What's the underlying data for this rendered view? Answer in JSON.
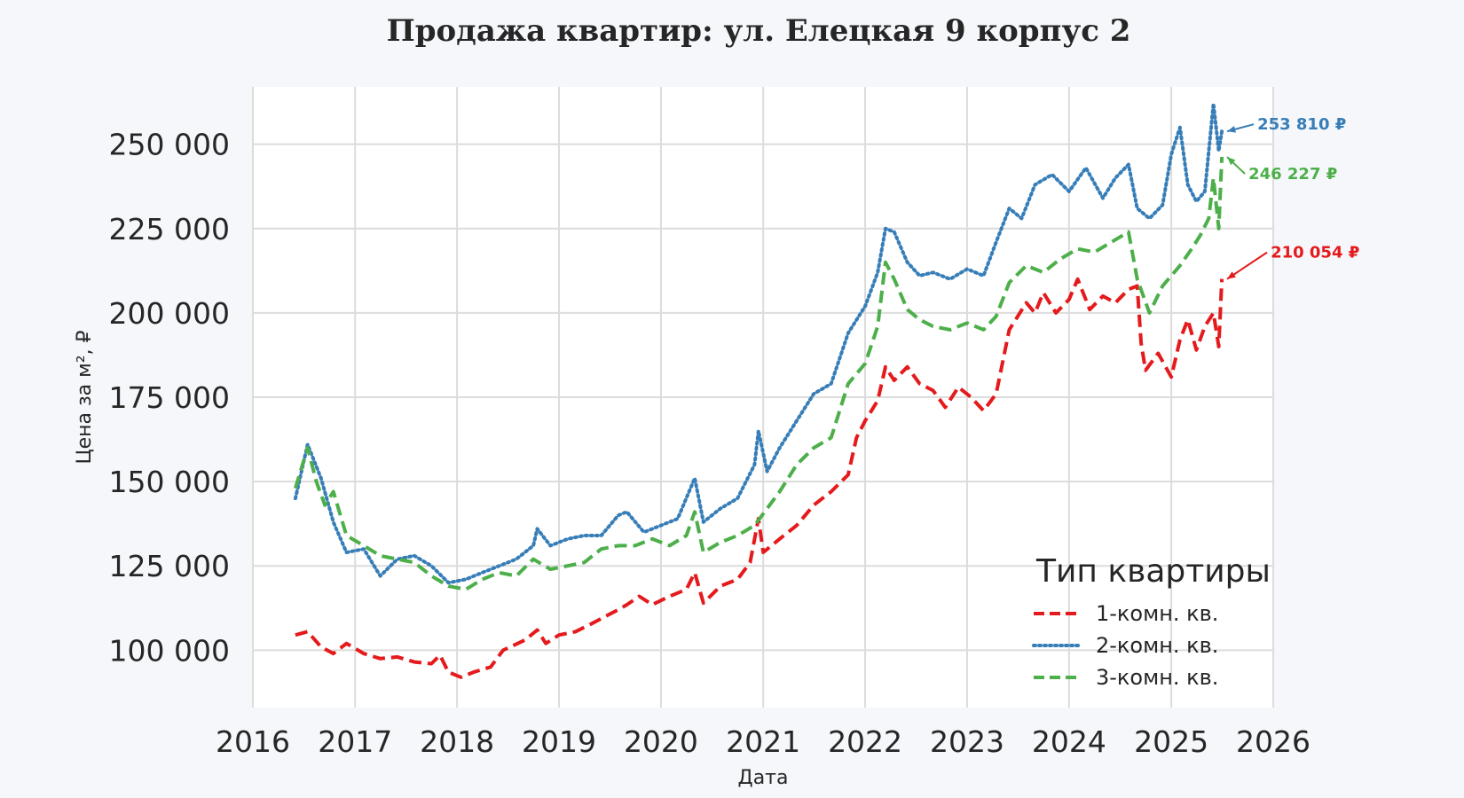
{
  "chart_data": {
    "type": "line",
    "title": "Продажа квартир: ул. Елецкая 9 корпус 2",
    "xlabel": "Дата",
    "ylabel": "Цена за м², ₽",
    "xlim": [
      "2016-01-01",
      "2026-01-01"
    ],
    "ylim": [
      83000,
      267000
    ],
    "x_ticks": [
      "2016",
      "2017",
      "2018",
      "2019",
      "2020",
      "2021",
      "2022",
      "2023",
      "2024",
      "2025",
      "2026"
    ],
    "y_ticks": [
      100000,
      125000,
      150000,
      175000,
      200000,
      225000,
      250000
    ],
    "y_tick_labels": [
      "100 000",
      "125 000",
      "150 000",
      "175 000",
      "200 000",
      "225 000",
      "250 000"
    ],
    "grid": true,
    "legend": {
      "title": "Тип квартиры",
      "placement": "bottom-right"
    },
    "series": [
      {
        "name": "1-комн. кв.",
        "color": "#e41a1c",
        "dash": "dashed",
        "end_label": "210 054 ₽",
        "points": [
          [
            "2016-06-01",
            104500
          ],
          [
            "2016-07-15",
            105500
          ],
          [
            "2016-09-01",
            101000
          ],
          [
            "2016-10-15",
            99000
          ],
          [
            "2016-12-01",
            102000
          ],
          [
            "2017-02-01",
            99000
          ],
          [
            "2017-04-01",
            97500
          ],
          [
            "2017-06-01",
            98000
          ],
          [
            "2017-08-01",
            96500
          ],
          [
            "2017-10-01",
            96000
          ],
          [
            "2017-11-01",
            98500
          ],
          [
            "2017-12-01",
            93500
          ],
          [
            "2018-01-15",
            92000
          ],
          [
            "2018-03-01",
            93500
          ],
          [
            "2018-05-01",
            95000
          ],
          [
            "2018-06-15",
            100000
          ],
          [
            "2018-09-01",
            103000
          ],
          [
            "2018-10-15",
            106000
          ],
          [
            "2018-11-15",
            102000
          ],
          [
            "2019-01-01",
            104500
          ],
          [
            "2019-03-01",
            105500
          ],
          [
            "2019-05-01",
            108000
          ],
          [
            "2019-06-15",
            110000
          ],
          [
            "2019-08-01",
            112000
          ],
          [
            "2019-09-01",
            113500
          ],
          [
            "2019-10-15",
            116000
          ],
          [
            "2019-12-01",
            113500
          ],
          [
            "2020-02-01",
            116000
          ],
          [
            "2020-04-01",
            118000
          ],
          [
            "2020-05-01",
            123000
          ],
          [
            "2020-06-01",
            114000
          ],
          [
            "2020-08-01",
            119000
          ],
          [
            "2020-10-01",
            121000
          ],
          [
            "2020-11-15",
            126000
          ],
          [
            "2020-12-15",
            139000
          ],
          [
            "2021-01-01",
            129000
          ],
          [
            "2021-03-01",
            133000
          ],
          [
            "2021-05-01",
            137000
          ],
          [
            "2021-07-01",
            143000
          ],
          [
            "2021-09-01",
            147000
          ],
          [
            "2021-11-01",
            152000
          ],
          [
            "2021-12-01",
            163000
          ],
          [
            "2022-01-01",
            168000
          ],
          [
            "2022-02-15",
            174000
          ],
          [
            "2022-03-15",
            184000
          ],
          [
            "2022-04-15",
            180000
          ],
          [
            "2022-06-01",
            184000
          ],
          [
            "2022-07-15",
            179000
          ],
          [
            "2022-09-01",
            177000
          ],
          [
            "2022-10-15",
            172000
          ],
          [
            "2022-12-01",
            178000
          ],
          [
            "2023-01-15",
            175000
          ],
          [
            "2023-03-01",
            171000
          ],
          [
            "2023-04-15",
            176000
          ],
          [
            "2023-06-01",
            195000
          ],
          [
            "2023-08-01",
            203000
          ],
          [
            "2023-09-01",
            200000
          ],
          [
            "2023-10-01",
            206000
          ],
          [
            "2023-11-15",
            200000
          ],
          [
            "2024-01-01",
            204000
          ],
          [
            "2024-02-01",
            210000
          ],
          [
            "2024-03-15",
            201000
          ],
          [
            "2024-05-01",
            205000
          ],
          [
            "2024-06-15",
            203000
          ],
          [
            "2024-08-01",
            207000
          ],
          [
            "2024-09-01",
            208000
          ],
          [
            "2024-09-15",
            191000
          ],
          [
            "2024-10-01",
            183000
          ],
          [
            "2024-11-15",
            188000
          ],
          [
            "2025-01-01",
            181000
          ],
          [
            "2025-02-01",
            192000
          ],
          [
            "2025-03-01",
            198000
          ],
          [
            "2025-04-01",
            189000
          ],
          [
            "2025-05-01",
            196000
          ],
          [
            "2025-06-01",
            200000
          ],
          [
            "2025-06-20",
            190000
          ],
          [
            "2025-07-01",
            210054
          ]
        ]
      },
      {
        "name": "2-комн. кв.",
        "color": "#377eb8",
        "dash": "dotted",
        "end_label": "253 810 ₽",
        "points": [
          [
            "2016-06-01",
            145000
          ],
          [
            "2016-07-15",
            161000
          ],
          [
            "2016-09-01",
            151000
          ],
          [
            "2016-10-15",
            138000
          ],
          [
            "2016-12-01",
            129000
          ],
          [
            "2017-02-01",
            130000
          ],
          [
            "2017-04-01",
            122000
          ],
          [
            "2017-06-01",
            127000
          ],
          [
            "2017-08-01",
            128000
          ],
          [
            "2017-10-01",
            125000
          ],
          [
            "2017-12-01",
            120000
          ],
          [
            "2018-02-01",
            121000
          ],
          [
            "2018-04-01",
            123000
          ],
          [
            "2018-06-01",
            125000
          ],
          [
            "2018-08-01",
            127000
          ],
          [
            "2018-10-01",
            131000
          ],
          [
            "2018-10-15",
            136000
          ],
          [
            "2018-12-01",
            131000
          ],
          [
            "2019-02-01",
            133000
          ],
          [
            "2019-04-01",
            134000
          ],
          [
            "2019-06-01",
            134000
          ],
          [
            "2019-08-01",
            140000
          ],
          [
            "2019-09-01",
            141000
          ],
          [
            "2019-11-01",
            135000
          ],
          [
            "2020-01-01",
            137000
          ],
          [
            "2020-03-01",
            139000
          ],
          [
            "2020-05-01",
            151000
          ],
          [
            "2020-06-01",
            138000
          ],
          [
            "2020-08-01",
            142000
          ],
          [
            "2020-10-01",
            145000
          ],
          [
            "2020-12-01",
            155000
          ],
          [
            "2020-12-15",
            165000
          ],
          [
            "2021-01-15",
            153000
          ],
          [
            "2021-03-01",
            160000
          ],
          [
            "2021-05-01",
            168000
          ],
          [
            "2021-07-01",
            176000
          ],
          [
            "2021-09-01",
            179000
          ],
          [
            "2021-11-01",
            194000
          ],
          [
            "2022-01-01",
            202000
          ],
          [
            "2022-02-15",
            212000
          ],
          [
            "2022-03-15",
            225000
          ],
          [
            "2022-04-15",
            224000
          ],
          [
            "2022-06-01",
            215000
          ],
          [
            "2022-07-15",
            211000
          ],
          [
            "2022-09-01",
            212000
          ],
          [
            "2022-11-01",
            210000
          ],
          [
            "2023-01-01",
            213000
          ],
          [
            "2023-03-01",
            211000
          ],
          [
            "2023-04-15",
            221000
          ],
          [
            "2023-06-01",
            231000
          ],
          [
            "2023-07-15",
            228000
          ],
          [
            "2023-09-01",
            238000
          ],
          [
            "2023-11-01",
            241000
          ],
          [
            "2024-01-01",
            236000
          ],
          [
            "2024-03-01",
            243000
          ],
          [
            "2024-05-01",
            234000
          ],
          [
            "2024-06-15",
            240000
          ],
          [
            "2024-08-01",
            244000
          ],
          [
            "2024-09-01",
            231000
          ],
          [
            "2024-10-15",
            228000
          ],
          [
            "2024-12-01",
            232000
          ],
          [
            "2025-01-01",
            247000
          ],
          [
            "2025-02-01",
            255000
          ],
          [
            "2025-03-01",
            238000
          ],
          [
            "2025-04-01",
            233000
          ],
          [
            "2025-05-01",
            236000
          ],
          [
            "2025-06-01",
            262000
          ],
          [
            "2025-06-20",
            248000
          ],
          [
            "2025-07-01",
            253810
          ]
        ]
      },
      {
        "name": "3-комн. кв.",
        "color": "#4daf4a",
        "dash": "dashed",
        "end_label": "246 227 ₽",
        "points": [
          [
            "2016-06-01",
            148000
          ],
          [
            "2016-07-15",
            160000
          ],
          [
            "2016-08-15",
            150000
          ],
          [
            "2016-09-15",
            143000
          ],
          [
            "2016-10-15",
            147000
          ],
          [
            "2016-12-01",
            134000
          ],
          [
            "2017-02-01",
            131000
          ],
          [
            "2017-04-01",
            128000
          ],
          [
            "2017-06-01",
            127000
          ],
          [
            "2017-08-01",
            126000
          ],
          [
            "2017-10-01",
            122000
          ],
          [
            "2017-12-01",
            119000
          ],
          [
            "2018-02-01",
            118000
          ],
          [
            "2018-04-01",
            121000
          ],
          [
            "2018-06-01",
            123000
          ],
          [
            "2018-08-01",
            122000
          ],
          [
            "2018-10-01",
            127000
          ],
          [
            "2018-12-01",
            124000
          ],
          [
            "2019-02-01",
            125000
          ],
          [
            "2019-04-01",
            126000
          ],
          [
            "2019-06-01",
            130000
          ],
          [
            "2019-08-01",
            131000
          ],
          [
            "2019-10-01",
            131000
          ],
          [
            "2019-12-01",
            133000
          ],
          [
            "2020-02-01",
            131000
          ],
          [
            "2020-04-01",
            134000
          ],
          [
            "2020-05-01",
            141000
          ],
          [
            "2020-06-01",
            129000
          ],
          [
            "2020-08-01",
            132000
          ],
          [
            "2020-10-01",
            134000
          ],
          [
            "2020-12-01",
            137000
          ],
          [
            "2021-01-15",
            142000
          ],
          [
            "2021-03-01",
            147000
          ],
          [
            "2021-05-01",
            155000
          ],
          [
            "2021-07-01",
            160000
          ],
          [
            "2021-09-01",
            163000
          ],
          [
            "2021-11-01",
            179000
          ],
          [
            "2022-01-01",
            185000
          ],
          [
            "2022-02-15",
            196000
          ],
          [
            "2022-03-15",
            215000
          ],
          [
            "2022-04-15",
            210000
          ],
          [
            "2022-06-01",
            201000
          ],
          [
            "2022-07-15",
            198000
          ],
          [
            "2022-09-01",
            196000
          ],
          [
            "2022-11-01",
            195000
          ],
          [
            "2023-01-01",
            197000
          ],
          [
            "2023-03-01",
            195000
          ],
          [
            "2023-04-15",
            199000
          ],
          [
            "2023-06-01",
            209000
          ],
          [
            "2023-08-01",
            214000
          ],
          [
            "2023-10-01",
            212000
          ],
          [
            "2023-12-01",
            216000
          ],
          [
            "2024-02-01",
            219000
          ],
          [
            "2024-04-01",
            218000
          ],
          [
            "2024-06-01",
            221000
          ],
          [
            "2024-08-01",
            224000
          ],
          [
            "2024-09-01",
            210000
          ],
          [
            "2024-10-15",
            200000
          ],
          [
            "2024-12-01",
            208000
          ],
          [
            "2025-02-01",
            214000
          ],
          [
            "2025-03-15",
            219000
          ],
          [
            "2025-04-15",
            223000
          ],
          [
            "2025-05-15",
            228000
          ],
          [
            "2025-06-01",
            240000
          ],
          [
            "2025-06-20",
            225000
          ],
          [
            "2025-07-01",
            246227
          ]
        ]
      }
    ]
  }
}
